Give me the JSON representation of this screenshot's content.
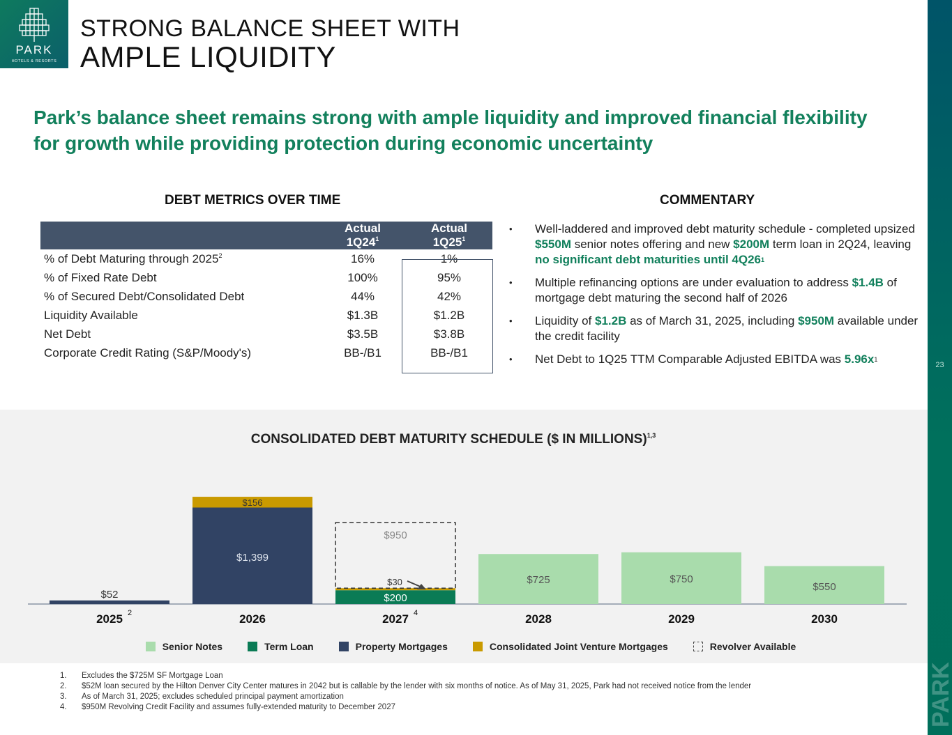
{
  "logo": {
    "name": "PARK",
    "sub": "HOTELS & RESORTS"
  },
  "title": {
    "line1": "STRONG BALANCE SHEET WITH",
    "line2": "AMPLE LIQUIDITY"
  },
  "headline": "Park’s balance sheet remains strong with ample liquidity and improved financial flexibility for growth while providing protection during economic uncertainty",
  "page_number": "23",
  "debt_metrics": {
    "heading": "DEBT METRICS OVER TIME",
    "columns": [
      {
        "line1": "Actual",
        "line2": "1Q24",
        "sup": "1"
      },
      {
        "line1": "Actual",
        "line2": "1Q25",
        "sup": "1"
      }
    ],
    "rows": [
      {
        "label": "% of Debt Maturing through 2025",
        "sup": "2",
        "v1": "16%",
        "v2": "1%"
      },
      {
        "label": "% of Fixed Rate Debt",
        "sup": "",
        "v1": "100%",
        "v2": "95%"
      },
      {
        "label": "% of Secured Debt/Consolidated Debt",
        "sup": "",
        "v1": "44%",
        "v2": "42%"
      },
      {
        "label": "Liquidity Available",
        "sup": "",
        "v1": "$1.3B",
        "v2": "$1.2B"
      },
      {
        "label": "Net Debt",
        "sup": "",
        "v1": "$3.5B",
        "v2": "$3.8B"
      },
      {
        "label": "Corporate Credit Rating (S&P/Moody's)",
        "sup": "",
        "v1": "BB-/B1",
        "v2": "BB-/B1"
      }
    ]
  },
  "commentary": {
    "heading": "COMMENTARY",
    "b1": [
      "Well-laddered and improved debt maturity schedule - completed upsized ",
      "$550M",
      " senior notes offering and new ",
      "$200M",
      " term loan in 2Q24, leaving ",
      "no significant debt maturities until 4Q26",
      "1"
    ],
    "b2": [
      "Multiple refinancing options are under evaluation to address ",
      "$1.4B",
      " of mortgage debt maturing the second half of 2026"
    ],
    "b3": [
      "Liquidity of ",
      "$1.2B",
      " as of March 31, 2025, including ",
      "$950M",
      " available under the credit facility"
    ],
    "b4": [
      "Net Debt to 1Q25 TTM Comparable Adjusted EBITDA was ",
      "5.96x",
      "1"
    ]
  },
  "chart_data": {
    "type": "bar",
    "title": "CONSOLIDATED DEBT MATURITY SCHEDULE ($ IN MILLIONS)",
    "title_sup": "1,3",
    "categories": [
      "2025",
      "2026",
      "2027",
      "2028",
      "2029",
      "2030"
    ],
    "category_sups": [
      "2",
      "",
      "4",
      "",
      "",
      ""
    ],
    "stacked": true,
    "series": [
      {
        "name": "Senior Notes",
        "color": "#a9dcac",
        "values": [
          0,
          0,
          0,
          725,
          750,
          550
        ]
      },
      {
        "name": "Term Loan",
        "color": "#0a7b55",
        "values": [
          0,
          0,
          200,
          0,
          0,
          0
        ]
      },
      {
        "name": "Property Mortgages",
        "color": "#314364",
        "values": [
          52,
          1399,
          0,
          0,
          0,
          0
        ]
      },
      {
        "name": "Consolidated Joint Venture Mortgages",
        "color": "#c99a00",
        "values": [
          0,
          156,
          30,
          0,
          0,
          0
        ]
      },
      {
        "name": "Revolver Available",
        "color": "#444444",
        "values": [
          0,
          0,
          950,
          0,
          0,
          0
        ],
        "style": "dashed"
      }
    ],
    "data_labels": [
      {
        "cat": "2025",
        "text": "$52"
      },
      {
        "cat": "2026",
        "text": "$1,399"
      },
      {
        "cat": "2026",
        "text": "$156"
      },
      {
        "cat": "2027",
        "text": "$200"
      },
      {
        "cat": "2027",
        "text": "$30"
      },
      {
        "cat": "2027",
        "text": "$950"
      },
      {
        "cat": "2028",
        "text": "$725"
      },
      {
        "cat": "2029",
        "text": "$750"
      },
      {
        "cat": "2030",
        "text": "$550"
      }
    ],
    "legend_position": "bottom",
    "grid": false
  },
  "footnotes": [
    "Excludes the $725M SF Mortgage Loan",
    "$52M loan secured by the Hilton Denver City Center matures in 2042 but is callable by the lender with six months of notice. As of May 31, 2025, Park had not received notice from the lender",
    "As of March 31, 2025; excludes scheduled principal payment amortization",
    "$950M Revolving Credit Facility and assumes fully-extended maturity to December 2027"
  ]
}
